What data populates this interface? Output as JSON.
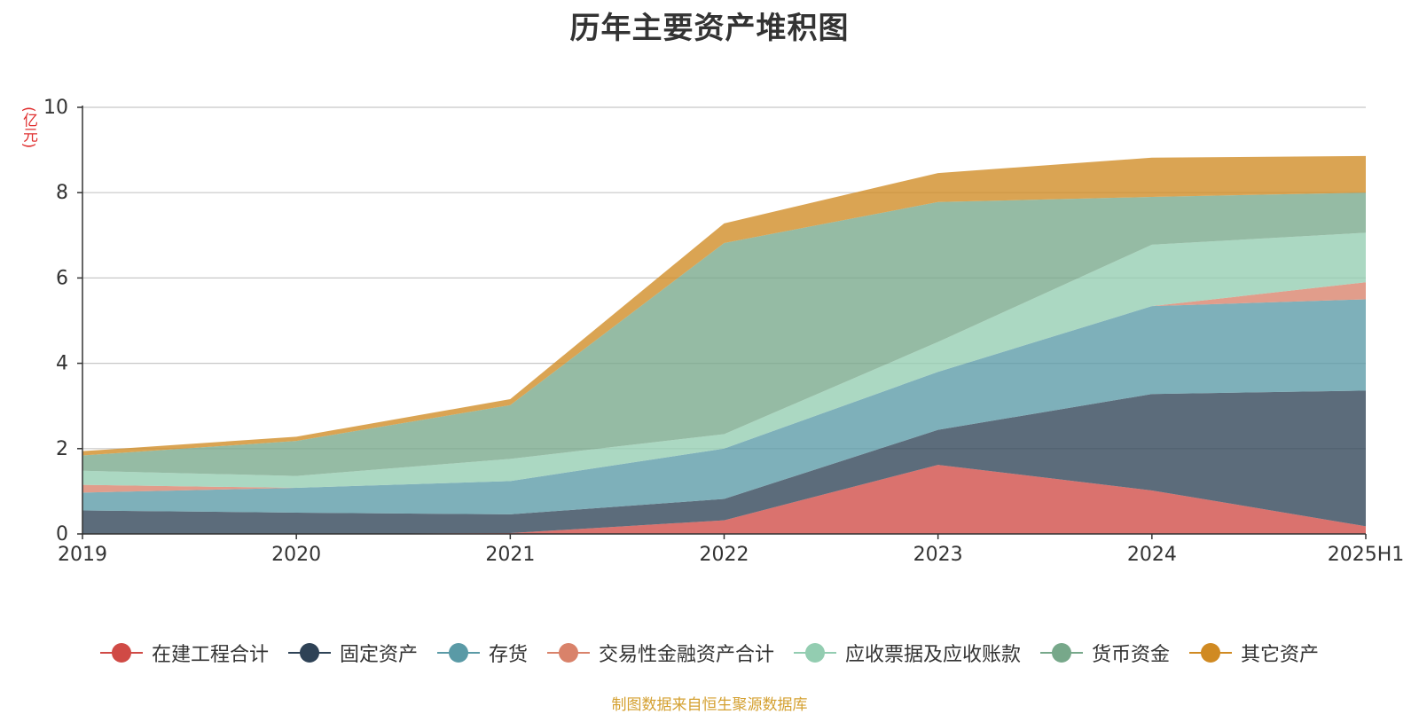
{
  "chart_data": {
    "type": "area",
    "stacked": true,
    "title": "历年主要资产堆积图",
    "ylabel": "(亿元)",
    "categories": [
      "2019",
      "2020",
      "2021",
      "2022",
      "2023",
      "2024",
      "2025H1"
    ],
    "ylim": [
      0,
      10
    ],
    "yticks": [
      "0",
      "2",
      "4",
      "6",
      "8",
      "10"
    ],
    "grid": true,
    "legend_position": "bottom",
    "series": [
      {
        "name": "在建工程合计",
        "color": "#d04a45",
        "values": [
          0.0,
          0.0,
          0.02,
          0.32,
          1.62,
          1.02,
          0.18
        ]
      },
      {
        "name": "固定资产",
        "color": "#2e4256",
        "values": [
          0.55,
          0.5,
          0.44,
          0.5,
          0.82,
          2.26,
          3.18
        ]
      },
      {
        "name": "存货",
        "color": "#5a9aa6",
        "values": [
          0.42,
          0.58,
          0.78,
          1.18,
          1.36,
          2.06,
          2.14
        ]
      },
      {
        "name": "交易性金融资产合计",
        "color": "#d9826a",
        "values": [
          0.18,
          0.0,
          0.0,
          0.0,
          0.0,
          0.0,
          0.4
        ]
      },
      {
        "name": "应收票据及应收账款",
        "color": "#93cdb1",
        "values": [
          0.33,
          0.28,
          0.52,
          0.34,
          0.7,
          1.44,
          1.16
        ]
      },
      {
        "name": "货币资金",
        "color": "#77a88a",
        "values": [
          0.36,
          0.82,
          1.26,
          4.48,
          3.28,
          1.12,
          0.94
        ]
      },
      {
        "name": "其它资产",
        "color": "#d08a22",
        "values": [
          0.1,
          0.1,
          0.14,
          0.46,
          0.68,
          0.92,
          0.86
        ]
      }
    ]
  },
  "source_note": "制图数据来自恒生聚源数据库"
}
